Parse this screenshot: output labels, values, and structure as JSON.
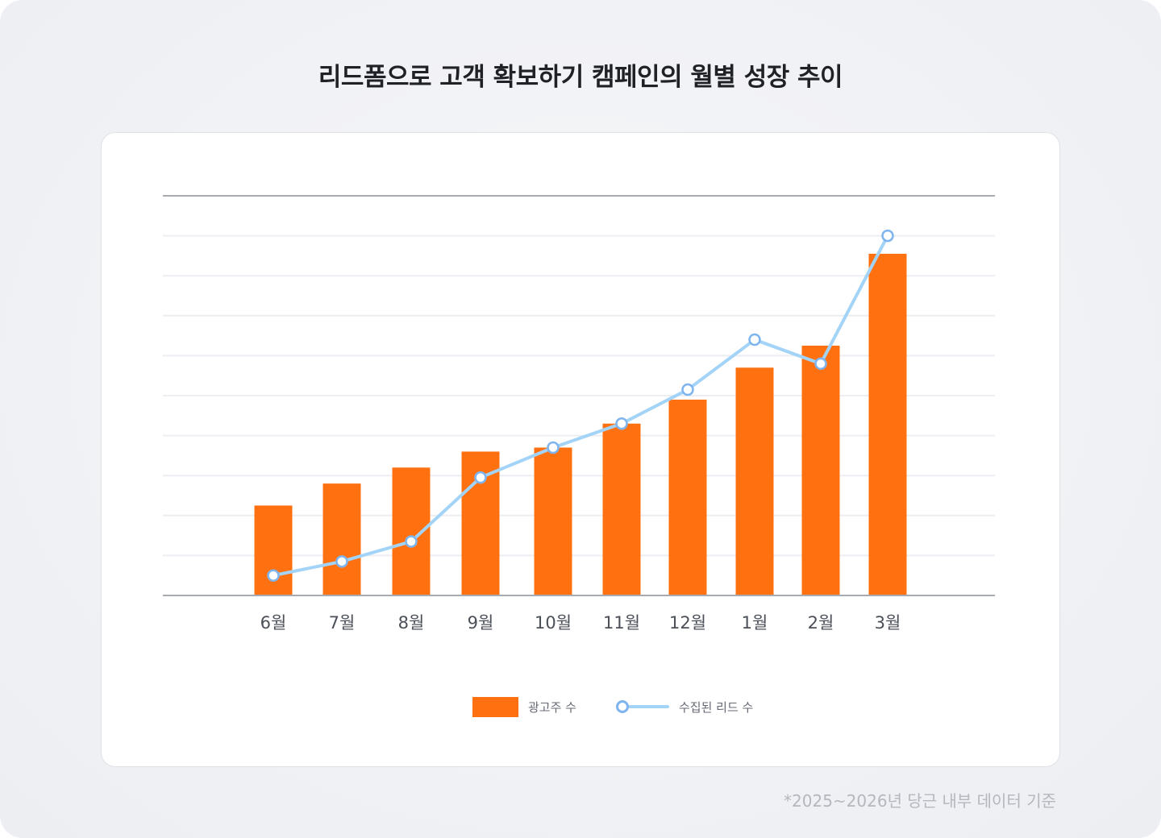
{
  "title": "리드폼으로 고객 확보하기 캠페인의 월별 성장 추이",
  "footnote": "*2025~2026년 당근 내부 데이터 기준",
  "legend": {
    "bar_label": "광고주 수",
    "line_label": "수집된 리드 수"
  },
  "colors": {
    "bar": "#ff7010",
    "line": "#a3d4f8",
    "marker_stroke": "#7eb5ee",
    "grid": "#eceef1",
    "axis": "#a8abb2"
  },
  "chart_data": {
    "type": "bar",
    "categories": [
      "6월",
      "7월",
      "8월",
      "9월",
      "10월",
      "11월",
      "12월",
      "1월",
      "2월",
      "3월"
    ],
    "ylim": [
      0,
      10
    ],
    "grid": true,
    "y_tick_labels": false,
    "legend_position": "bottom",
    "series": [
      {
        "name": "광고주 수",
        "type": "bar",
        "values": [
          2.25,
          2.8,
          3.2,
          3.6,
          3.7,
          4.3,
          4.9,
          5.7,
          6.25,
          8.55
        ]
      },
      {
        "name": "수집된 리드 수",
        "type": "line",
        "values": [
          0.5,
          0.85,
          1.35,
          2.95,
          3.7,
          4.3,
          5.15,
          6.4,
          5.8,
          9.0
        ]
      }
    ]
  }
}
